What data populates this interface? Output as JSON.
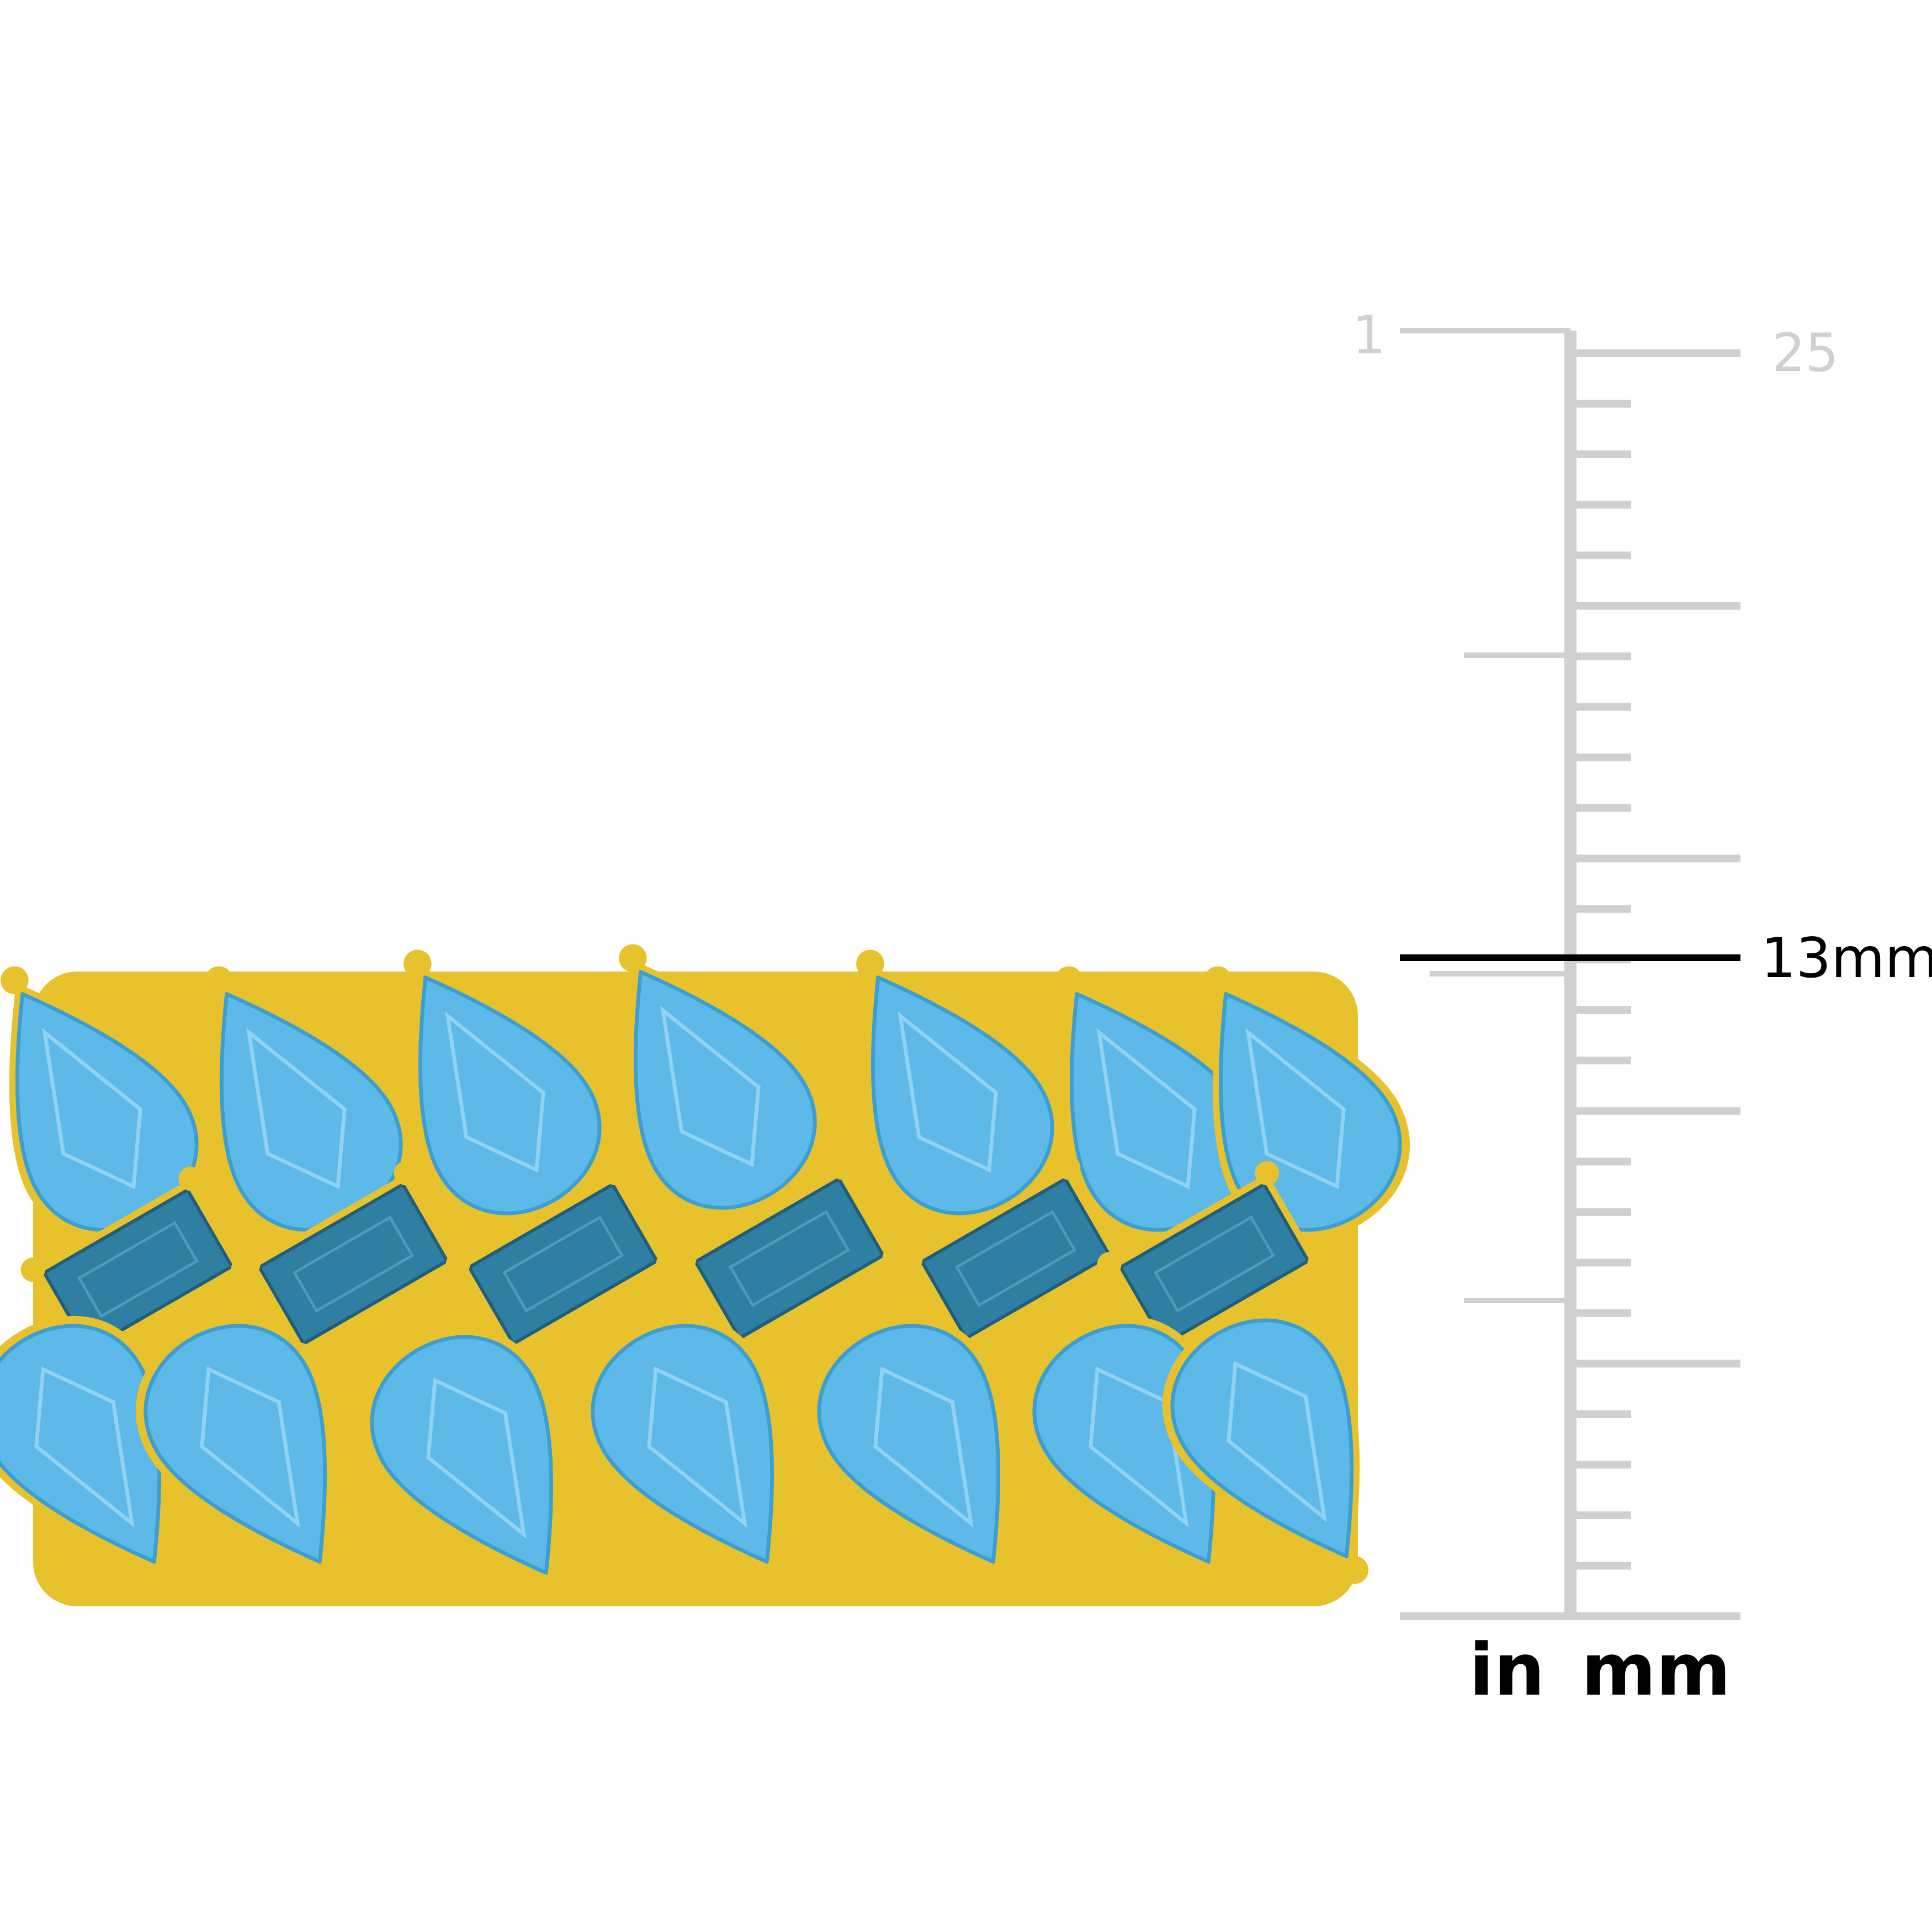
{
  "ruler": {
    "inch_label": "1",
    "mm_top_label": "25",
    "measurement_label": "13mm",
    "unit_in": "in",
    "unit_mm": "mm",
    "measurement_mm": 13,
    "range_mm": [
      0,
      25
    ],
    "color": "#d0d0d0",
    "marker_color": "#000000"
  },
  "product": {
    "metal_color": "#e8c22c",
    "light_stone_color": "#5cb9e8",
    "dark_stone_color": "#2f7fa3"
  }
}
